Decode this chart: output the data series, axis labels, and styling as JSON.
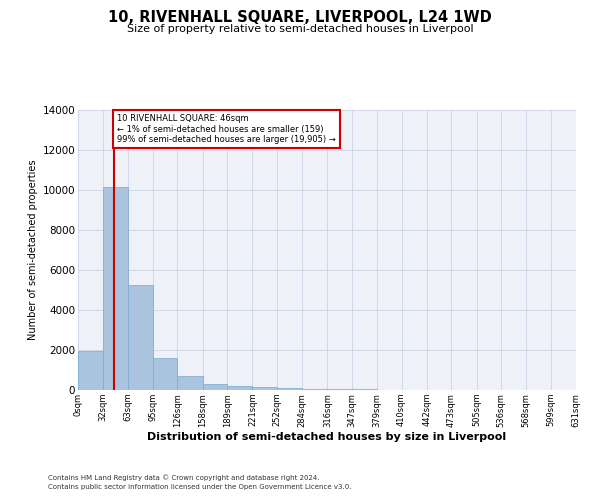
{
  "title": "10, RIVENHALL SQUARE, LIVERPOOL, L24 1WD",
  "subtitle": "Size of property relative to semi-detached houses in Liverpool",
  "xlabel": "Distribution of semi-detached houses by size in Liverpool",
  "ylabel": "Number of semi-detached properties",
  "footnote1": "Contains HM Land Registry data © Crown copyright and database right 2024.",
  "footnote2": "Contains public sector information licensed under the Open Government Licence v3.0.",
  "property_size": 46,
  "annotation_line1": "10 RIVENHALL SQUARE: 46sqm",
  "annotation_line2": "← 1% of semi-detached houses are smaller (159)",
  "annotation_line3": "99% of semi-detached houses are larger (19,905) →",
  "bin_edges": [
    0,
    32,
    63,
    95,
    126,
    158,
    189,
    221,
    252,
    284,
    316,
    347,
    379,
    410,
    442,
    473,
    505,
    536,
    568,
    599,
    631
  ],
  "bin_labels": [
    "0sqm",
    "32sqm",
    "63sqm",
    "95sqm",
    "126sqm",
    "158sqm",
    "189sqm",
    "221sqm",
    "252sqm",
    "284sqm",
    "316sqm",
    "347sqm",
    "379sqm",
    "410sqm",
    "442sqm",
    "473sqm",
    "505sqm",
    "536sqm",
    "568sqm",
    "599sqm",
    "631sqm"
  ],
  "bar_heights": [
    1950,
    10150,
    5250,
    1580,
    700,
    310,
    200,
    130,
    80,
    50,
    30,
    60,
    20,
    10,
    10,
    5,
    5,
    5,
    5,
    5
  ],
  "bar_color": "#aac4e0",
  "bar_edge_color": "#7aaad0",
  "red_line_color": "#cc0000",
  "grid_color": "#d0d8e8",
  "bg_color": "#eef2f8",
  "ylim_max": 14000,
  "yticks": [
    0,
    2000,
    4000,
    6000,
    8000,
    10000,
    12000,
    14000
  ]
}
